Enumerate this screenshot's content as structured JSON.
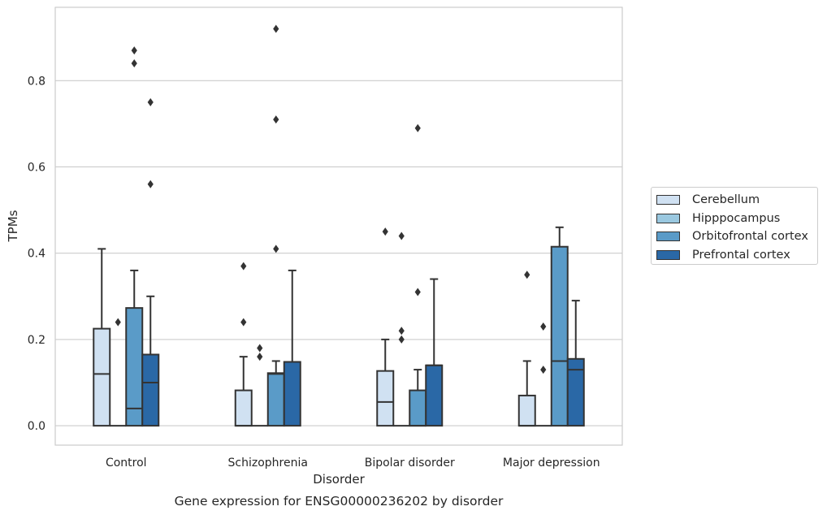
{
  "chart_data": {
    "type": "box",
    "xlabel": "Disorder",
    "ylabel": "TPMs",
    "caption": "Gene expression for ENSG00000236202 by disorder",
    "ylim": [
      -0.045,
      0.97
    ],
    "yticks": [
      0.0,
      0.2,
      0.4,
      0.6,
      0.8
    ],
    "ytick_labels": [
      "0.0",
      "0.2",
      "0.4",
      "0.6",
      "0.8"
    ],
    "grid": true,
    "legend_position": "right",
    "categories": [
      "Control",
      "Schizophrenia",
      "Bipolar disorder",
      "Major depression"
    ],
    "series": [
      {
        "name": "Cerebellum",
        "color": "#d0e1f2",
        "boxes": [
          {
            "q1": 0.0,
            "median": 0.12,
            "q3": 0.225,
            "whisker_low": 0.0,
            "whisker_high": 0.41,
            "outliers": []
          },
          {
            "q1": 0.0,
            "median": 0.0,
            "q3": 0.082,
            "whisker_low": 0.0,
            "whisker_high": 0.16,
            "outliers": [
              0.24,
              0.37
            ]
          },
          {
            "q1": 0.0,
            "median": 0.055,
            "q3": 0.127,
            "whisker_low": 0.0,
            "whisker_high": 0.2,
            "outliers": [
              0.45
            ]
          },
          {
            "q1": 0.0,
            "median": 0.0,
            "q3": 0.07,
            "whisker_low": 0.0,
            "whisker_high": 0.15,
            "outliers": [
              0.35
            ]
          }
        ]
      },
      {
        "name": "Hipppocampus",
        "color": "#9ac8e0",
        "boxes": [
          {
            "q1": 0.0,
            "median": 0.0,
            "q3": 0.0,
            "whisker_low": 0.0,
            "whisker_high": 0.0,
            "outliers": [
              0.24
            ]
          },
          {
            "q1": 0.0,
            "median": 0.0,
            "q3": 0.0,
            "whisker_low": 0.0,
            "whisker_high": 0.0,
            "outliers": [
              0.16,
              0.18
            ]
          },
          {
            "q1": 0.0,
            "median": 0.0,
            "q3": 0.0,
            "whisker_low": 0.0,
            "whisker_high": 0.0,
            "outliers": [
              0.2,
              0.22,
              0.44
            ]
          },
          {
            "q1": 0.0,
            "median": 0.0,
            "q3": 0.0,
            "whisker_low": 0.0,
            "whisker_high": 0.0,
            "outliers": [
              0.13,
              0.23
            ]
          }
        ]
      },
      {
        "name": "Orbitofrontal cortex",
        "color": "#5a9bc8",
        "boxes": [
          {
            "q1": 0.0,
            "median": 0.04,
            "q3": 0.273,
            "whisker_low": 0.0,
            "whisker_high": 0.36,
            "outliers": [
              0.84,
              0.87
            ]
          },
          {
            "q1": 0.0,
            "median": 0.12,
            "q3": 0.122,
            "whisker_low": 0.0,
            "whisker_high": 0.15,
            "outliers": [
              0.41,
              0.71,
              0.92
            ]
          },
          {
            "q1": 0.0,
            "median": 0.0,
            "q3": 0.082,
            "whisker_low": 0.0,
            "whisker_high": 0.13,
            "outliers": [
              0.31,
              0.69
            ]
          },
          {
            "q1": 0.0,
            "median": 0.15,
            "q3": 0.415,
            "whisker_low": 0.0,
            "whisker_high": 0.46,
            "outliers": []
          }
        ]
      },
      {
        "name": "Prefrontal cortex",
        "color": "#2a68a6",
        "boxes": [
          {
            "q1": 0.0,
            "median": 0.1,
            "q3": 0.165,
            "whisker_low": 0.0,
            "whisker_high": 0.3,
            "outliers": [
              0.56,
              0.75
            ]
          },
          {
            "q1": 0.0,
            "median": 0.148,
            "q3": 0.148,
            "whisker_low": 0.0,
            "whisker_high": 0.36,
            "outliers": []
          },
          {
            "q1": 0.0,
            "median": 0.14,
            "q3": 0.14,
            "whisker_low": 0.0,
            "whisker_high": 0.34,
            "outliers": []
          },
          {
            "q1": 0.0,
            "median": 0.13,
            "q3": 0.155,
            "whisker_low": 0.0,
            "whisker_high": 0.29,
            "outliers": []
          }
        ]
      }
    ]
  }
}
